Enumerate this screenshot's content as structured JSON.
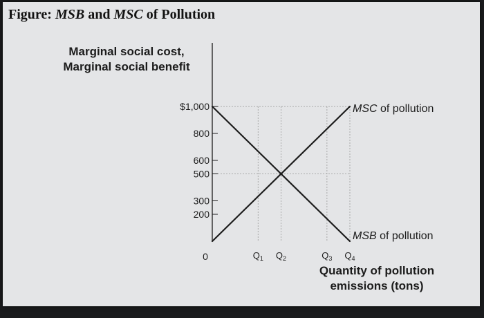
{
  "figure_title": {
    "prefix": "Figure: ",
    "msb": "MSB",
    "and": " and ",
    "msc": "MSC",
    "suffix": " of Pollution"
  },
  "colors": {
    "background": "#1a1b1d",
    "panel": "#e4e5e7",
    "ink": "#1c1c1c",
    "grid": "#a9a9a9"
  },
  "chart_data": {
    "type": "line",
    "ylabel": [
      "Marginal social cost,",
      "Marginal social benefit"
    ],
    "xlabel": [
      "Quantity of pollution",
      "emissions (tons)"
    ],
    "yticks": [
      {
        "value": 1000,
        "label": "$1,000"
      },
      {
        "value": 800,
        "label": "800"
      },
      {
        "value": 600,
        "label": "600"
      },
      {
        "value": 500,
        "label": "500"
      },
      {
        "value": 300,
        "label": "300"
      },
      {
        "value": 200,
        "label": "200"
      },
      {
        "value": 0,
        "label": "0"
      }
    ],
    "xticks": [
      {
        "value": 2,
        "label": "Q",
        "sub": "1"
      },
      {
        "value": 3,
        "label": "Q",
        "sub": "2"
      },
      {
        "value": 5,
        "label": "Q",
        "sub": "3"
      },
      {
        "value": 6,
        "label": "Q",
        "sub": "4"
      }
    ],
    "xlim": [
      0,
      6
    ],
    "ylim": [
      0,
      1000
    ],
    "series": [
      {
        "name": "MSC of pollution",
        "name_italic": "MSC",
        "name_rest": " of pollution",
        "points": [
          [
            0,
            0
          ],
          [
            6,
            1000
          ]
        ]
      },
      {
        "name": "MSB of pollution",
        "name_italic": "MSB",
        "name_rest": " of pollution",
        "points": [
          [
            0,
            1000
          ],
          [
            6,
            0
          ]
        ]
      }
    ],
    "guides": {
      "horizontal": [
        1000,
        500
      ],
      "vertical": [
        2,
        3,
        5,
        6
      ]
    },
    "grid": false,
    "legend": "none (lines labelled at ends)"
  }
}
